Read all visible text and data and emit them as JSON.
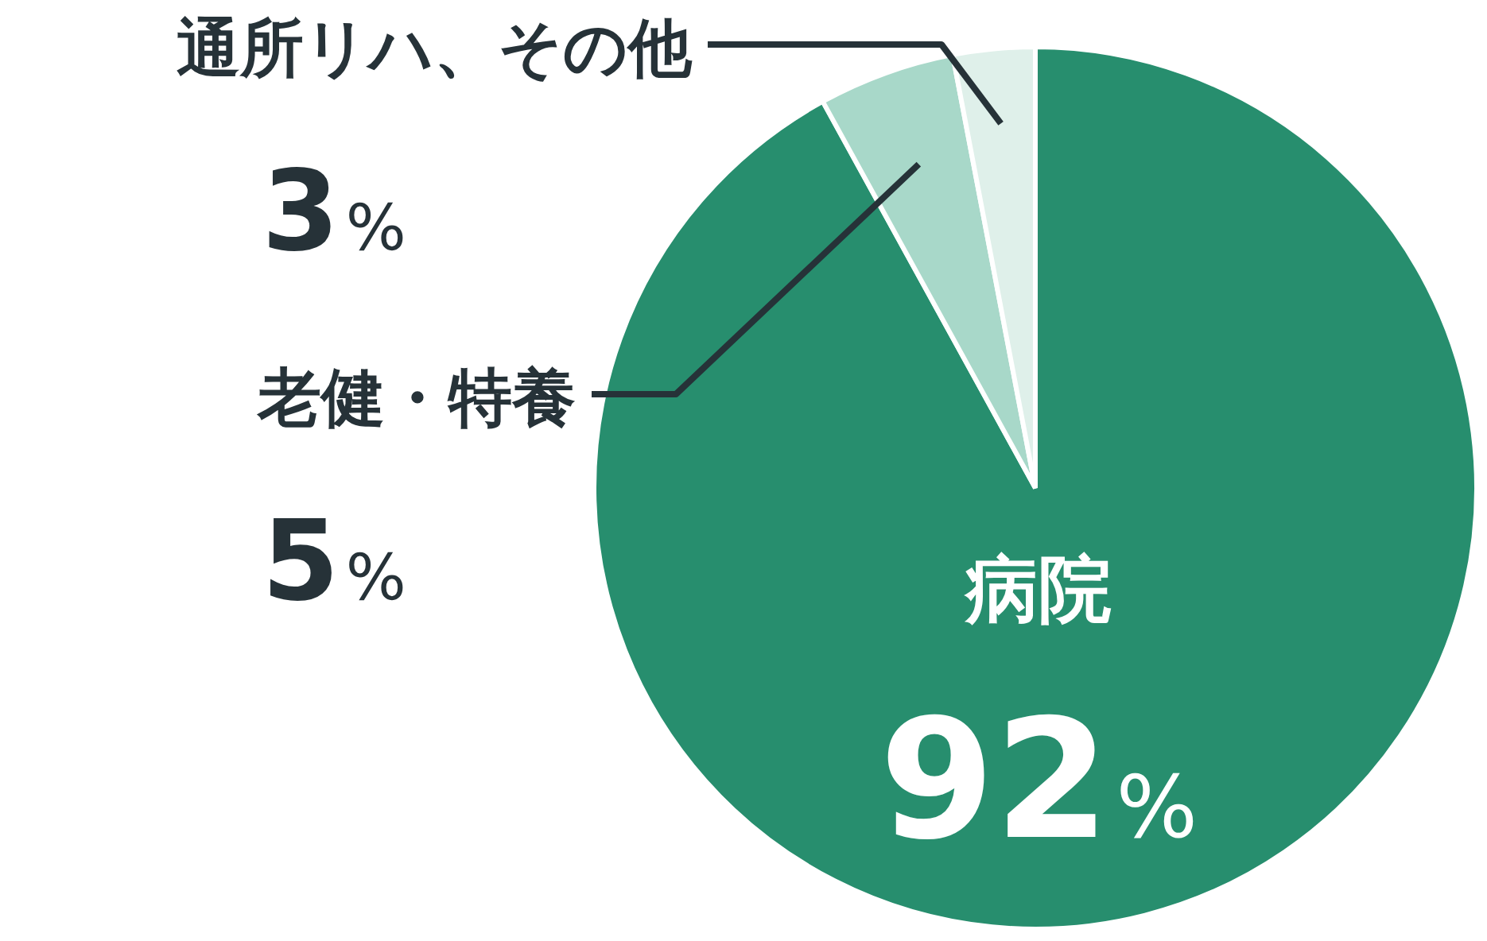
{
  "chart_data": {
    "type": "pie",
    "categories": [
      "病院",
      "老健・特養",
      "通所リハ、その他"
    ],
    "values": [
      92,
      5,
      3
    ],
    "colors": [
      "#278e6e",
      "#a8d8c9",
      "#dff0ea"
    ],
    "value_labels": [
      "92%",
      "5%",
      "3%"
    ],
    "legend": false
  }
}
